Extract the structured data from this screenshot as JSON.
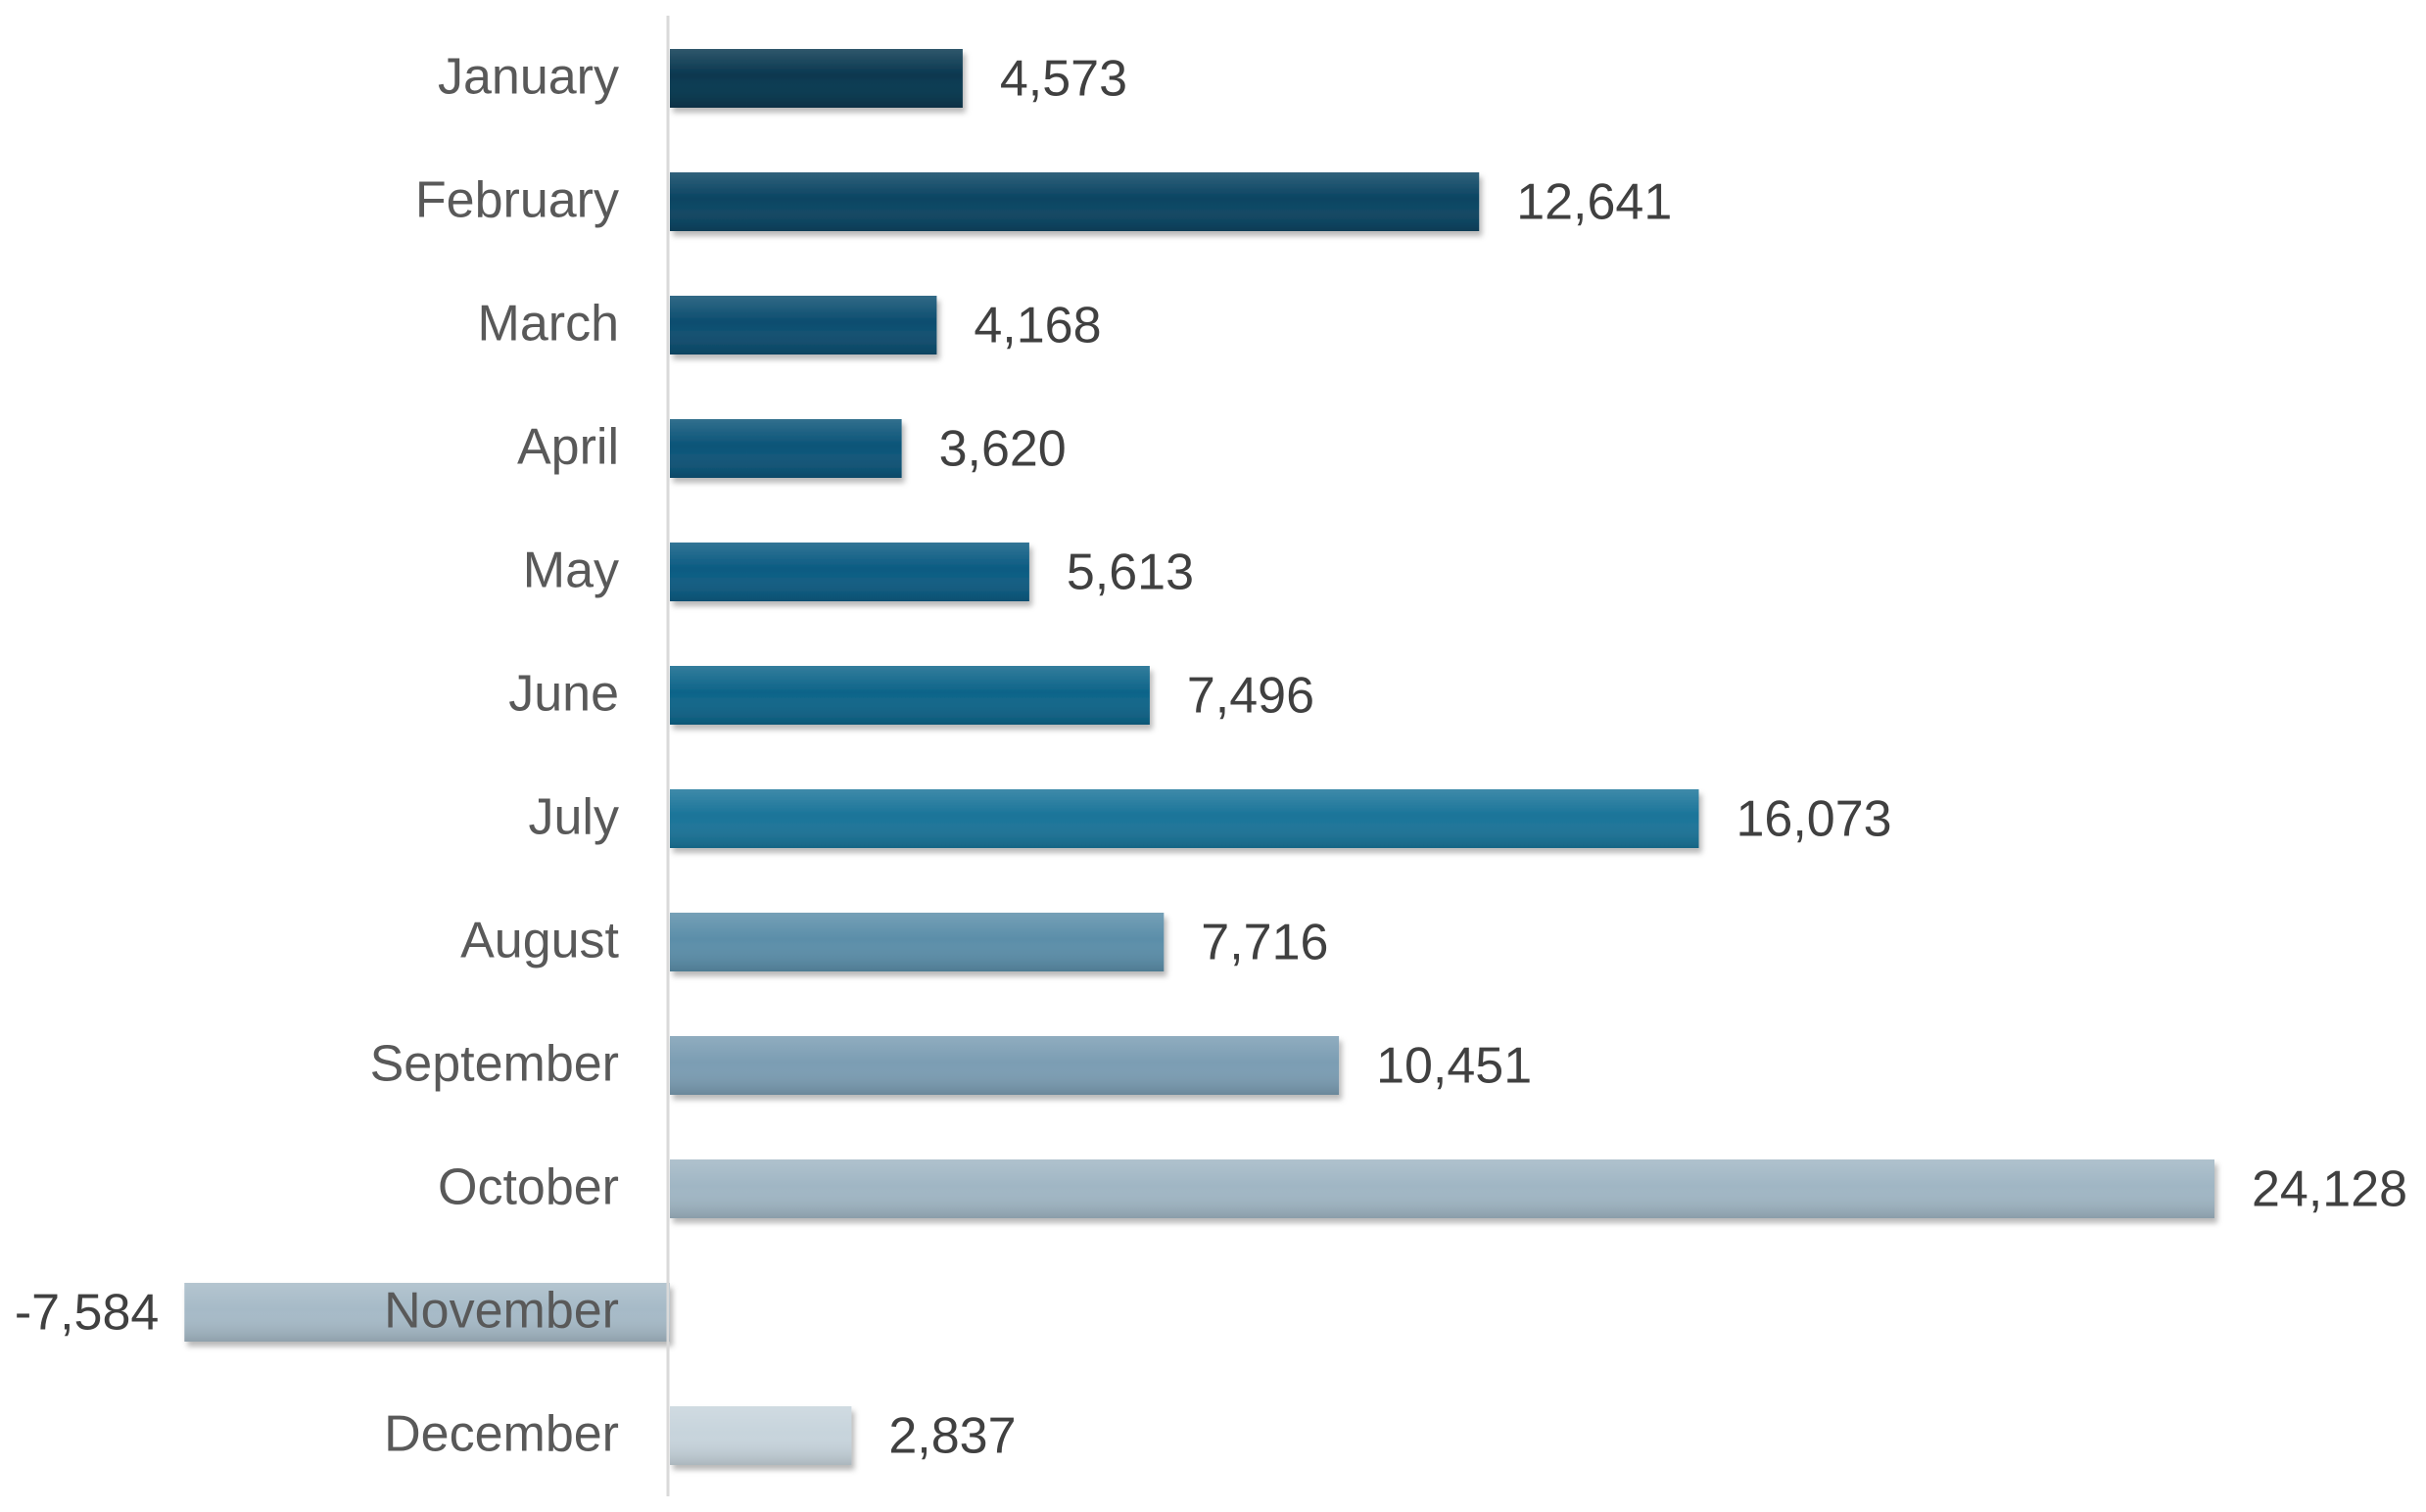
{
  "chart_data": {
    "type": "bar",
    "orientation": "horizontal",
    "categories": [
      "January",
      "February",
      "March",
      "April",
      "May",
      "June",
      "July",
      "August",
      "September",
      "October",
      "November",
      "December"
    ],
    "values": [
      4573,
      12641,
      4168,
      3620,
      5613,
      7496,
      16073,
      7716,
      10451,
      24128,
      -7584,
      2837
    ],
    "data_labels": [
      "4,573",
      "12,641",
      "4,168",
      "3,620",
      "5,613",
      "7,496",
      "16,073",
      "7,716",
      "10,451",
      "24,128",
      "-7,584",
      "2,837"
    ],
    "title": "",
    "xlabel": "",
    "ylabel": "",
    "xlim": [
      -10000,
      24500
    ],
    "grid": false,
    "legend": "none",
    "colors": [
      "#08374f",
      "#0a4462",
      "#0b4d6f",
      "#0b5478",
      "#0b5b82",
      "#0d6489",
      "#1a7499",
      "#5b8ea9",
      "#7b9db3",
      "#a0b6c4",
      "#a6bac7",
      "#c7d4dc"
    ],
    "axis_color": "#d9d9d9"
  }
}
